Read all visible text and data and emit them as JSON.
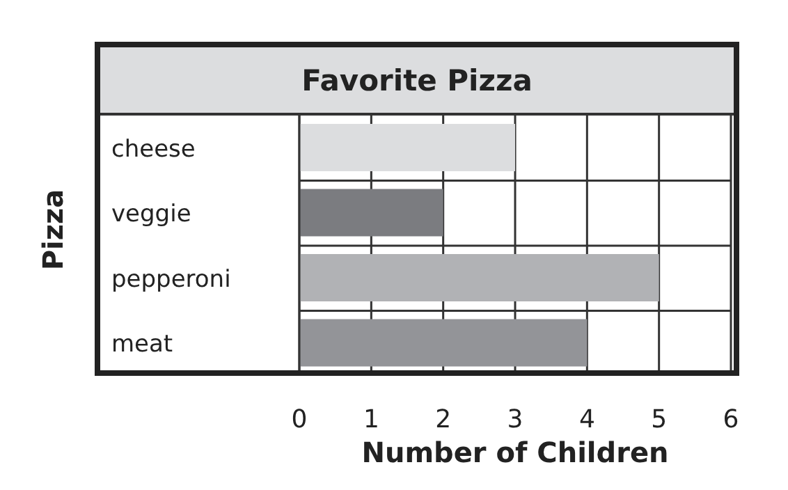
{
  "chart_data": {
    "type": "bar",
    "orientation": "horizontal",
    "title": "Favorite Pizza",
    "xlabel": "Number of Children",
    "ylabel": "Pizza",
    "categories": [
      "cheese",
      "veggie",
      "pepperoni",
      "meat"
    ],
    "values": [
      3,
      2,
      5,
      4
    ],
    "colors": [
      "#dcdddf",
      "#7b7c80",
      "#b1b2b5",
      "#939498"
    ],
    "xlim": [
      0,
      6
    ],
    "xticks": [
      0,
      1,
      2,
      3,
      4,
      5,
      6
    ],
    "grid": true
  }
}
